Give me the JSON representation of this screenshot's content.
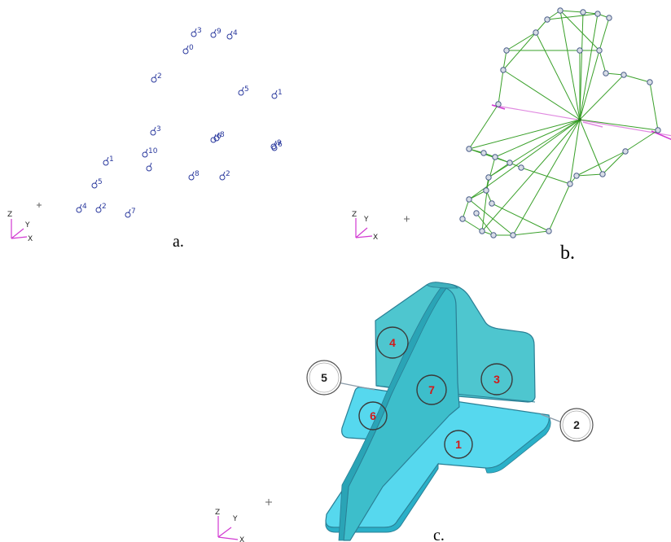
{
  "panels": {
    "a": {
      "caption": "a.",
      "node_labels": [
        "3",
        "9",
        "4",
        "0",
        "2",
        "5",
        "1",
        "3",
        "8",
        "9",
        "10",
        "1",
        "",
        "8",
        "2",
        "5",
        "4",
        "2",
        "7",
        "6",
        "6"
      ]
    },
    "b": {
      "caption": "b."
    },
    "c": {
      "caption": "c.",
      "surface_labels": [
        "4",
        "7",
        "3",
        "6",
        "1"
      ],
      "callout_labels": [
        "5",
        "2"
      ]
    }
  },
  "axis_triad": {
    "z": "Z",
    "y": "Y",
    "x": "X"
  },
  "colors": {
    "node": "#2b3a9e",
    "mesh_edge": "#3aa02a",
    "axis": "#d23ad2",
    "surface_top": "#4ec6cf",
    "surface_base": "#56d8ee",
    "label_red": "#d11a1a"
  }
}
